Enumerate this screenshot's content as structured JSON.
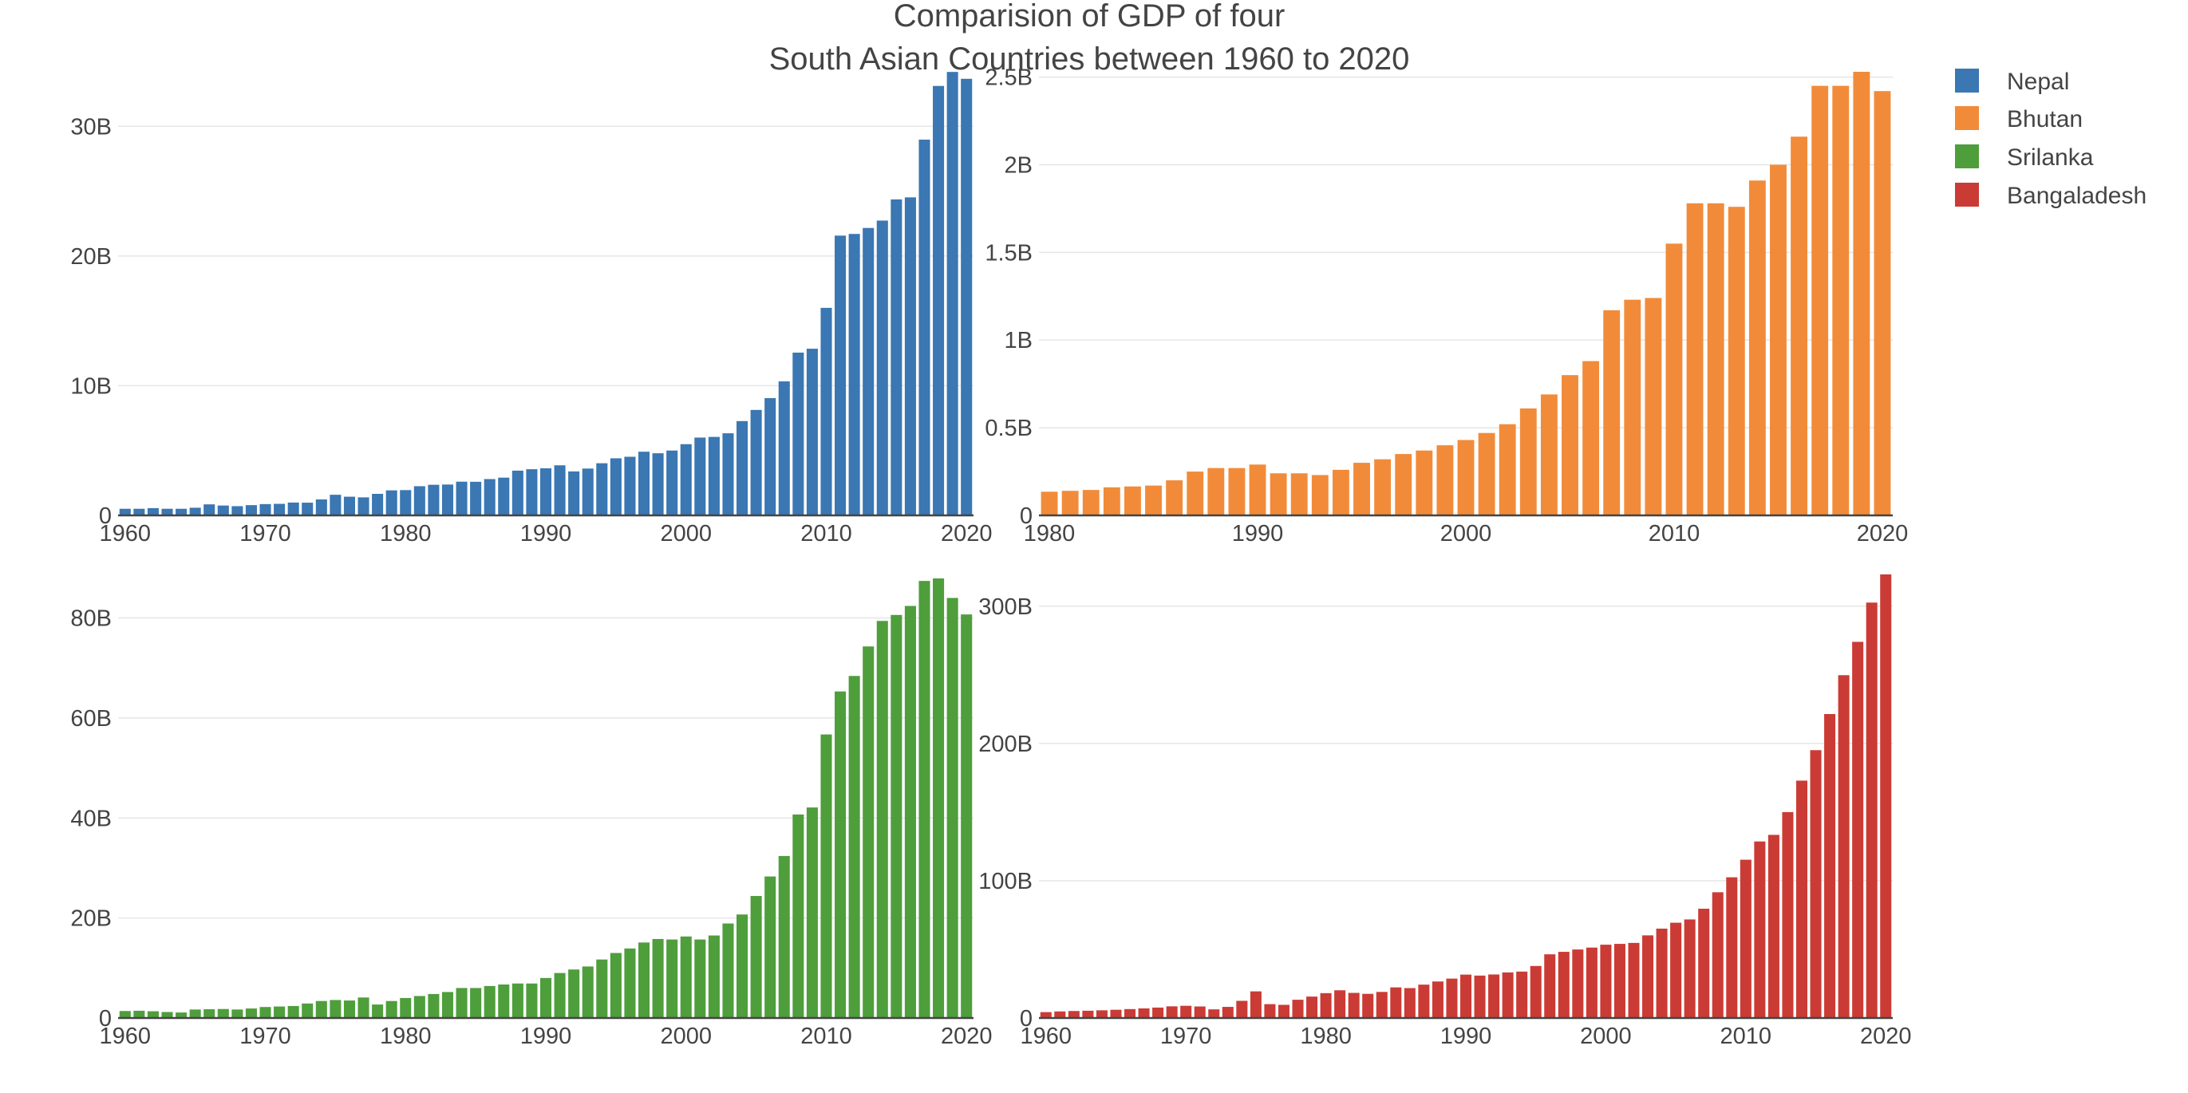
{
  "chart_title": {
    "line1": "Comparision of GDP of four",
    "line2": "South Asian Countries between 1960 to 2020"
  },
  "legend": [
    {
      "name": "Nepal",
      "color": "#3a77b3"
    },
    {
      "name": "Bhutan",
      "color": "#f28b39"
    },
    {
      "name": "Srilanka",
      "color": "#4f9e3c"
    },
    {
      "name": "Bangaladesh",
      "color": "#cb3b35"
    }
  ],
  "chart_data": [
    {
      "type": "bar",
      "series_name": "Nepal",
      "color": "#3a77b3",
      "x": [
        1960,
        1961,
        1962,
        1963,
        1964,
        1965,
        1966,
        1967,
        1968,
        1969,
        1970,
        1971,
        1972,
        1973,
        1974,
        1975,
        1976,
        1977,
        1978,
        1979,
        1980,
        1981,
        1982,
        1983,
        1984,
        1985,
        1986,
        1987,
        1988,
        1989,
        1990,
        1991,
        1992,
        1993,
        1994,
        1995,
        1996,
        1997,
        1998,
        1999,
        2000,
        2001,
        2002,
        2003,
        2004,
        2005,
        2006,
        2007,
        2008,
        2009,
        2010,
        2011,
        2012,
        2013,
        2014,
        2015,
        2016,
        2017,
        2018,
        2019,
        2020
      ],
      "values": [
        0.51,
        0.51,
        0.56,
        0.51,
        0.51,
        0.59,
        0.85,
        0.76,
        0.71,
        0.79,
        0.87,
        0.89,
        0.99,
        0.98,
        1.23,
        1.59,
        1.44,
        1.39,
        1.66,
        1.93,
        1.95,
        2.25,
        2.36,
        2.38,
        2.6,
        2.59,
        2.8,
        2.91,
        3.45,
        3.56,
        3.63,
        3.86,
        3.39,
        3.61,
        4.02,
        4.4,
        4.52,
        4.91,
        4.79,
        5.0,
        5.49,
        6.0,
        6.05,
        6.33,
        7.27,
        8.13,
        9.04,
        10.33,
        12.55,
        12.85,
        16.0,
        21.57,
        21.7,
        22.16,
        22.73,
        24.36,
        24.52,
        28.97,
        33.11,
        34.19,
        33.66
      ],
      "x_ticks": [
        "1960",
        "1970",
        "1980",
        "1990",
        "2000",
        "2010",
        "2020"
      ],
      "y_ticks": [
        {
          "label": "0",
          "value": 0
        },
        {
          "label": "10B",
          "value": 10
        },
        {
          "label": "20B",
          "value": 20
        },
        {
          "label": "30B",
          "value": 30
        }
      ],
      "ylim": [
        0,
        34.2
      ],
      "unit": "billions USD"
    },
    {
      "type": "bar",
      "series_name": "Bhutan",
      "color": "#f28b39",
      "x": [
        1980,
        1981,
        1982,
        1983,
        1984,
        1985,
        1986,
        1987,
        1988,
        1989,
        1990,
        1991,
        1992,
        1993,
        1994,
        1995,
        1996,
        1997,
        1998,
        1999,
        2000,
        2001,
        2002,
        2003,
        2004,
        2005,
        2006,
        2007,
        2008,
        2009,
        2010,
        2011,
        2012,
        2013,
        2014,
        2015,
        2016,
        2017,
        2018,
        2019,
        2020
      ],
      "values": [
        0.135,
        0.14,
        0.145,
        0.16,
        0.165,
        0.17,
        0.2,
        0.25,
        0.27,
        0.27,
        0.29,
        0.24,
        0.24,
        0.23,
        0.26,
        0.3,
        0.32,
        0.35,
        0.37,
        0.4,
        0.43,
        0.47,
        0.52,
        0.61,
        0.69,
        0.8,
        0.88,
        1.17,
        1.23,
        1.24,
        1.55,
        1.78,
        1.78,
        1.76,
        1.91,
        2.0,
        2.16,
        2.45,
        2.45,
        2.53,
        2.42
      ],
      "x_ticks": [
        "1980",
        "1990",
        "2000",
        "2010",
        "2020"
      ],
      "y_ticks": [
        {
          "label": "0",
          "value": 0
        },
        {
          "label": "0.5B",
          "value": 0.5
        },
        {
          "label": "1B",
          "value": 1
        },
        {
          "label": "1.5B",
          "value": 1.5
        },
        {
          "label": "2B",
          "value": 2
        },
        {
          "label": "2.5B",
          "value": 2.5
        }
      ],
      "ylim": [
        0,
        2.53
      ],
      "unit": "billions USD"
    },
    {
      "type": "bar",
      "series_name": "Srilanka",
      "color": "#4f9e3c",
      "x": [
        1960,
        1961,
        1962,
        1963,
        1964,
        1965,
        1966,
        1967,
        1968,
        1969,
        1970,
        1971,
        1972,
        1973,
        1974,
        1975,
        1976,
        1977,
        1978,
        1979,
        1980,
        1981,
        1982,
        1983,
        1984,
        1985,
        1986,
        1987,
        1988,
        1989,
        1990,
        1991,
        1992,
        1993,
        1994,
        1995,
        1996,
        1997,
        1998,
        1999,
        2000,
        2001,
        2002,
        2003,
        2004,
        2005,
        2006,
        2007,
        2008,
        2009,
        2010,
        2011,
        2012,
        2013,
        2014,
        2015,
        2016,
        2017,
        2018,
        2019,
        2020
      ],
      "values": [
        1.4,
        1.45,
        1.35,
        1.2,
        1.1,
        1.7,
        1.75,
        1.8,
        1.7,
        1.9,
        2.2,
        2.3,
        2.4,
        2.9,
        3.4,
        3.6,
        3.5,
        4.1,
        2.7,
        3.4,
        4.0,
        4.4,
        4.8,
        5.2,
        6.0,
        6.0,
        6.4,
        6.7,
        6.9,
        6.9,
        8.0,
        9.0,
        9.7,
        10.3,
        11.7,
        13.0,
        13.9,
        15.1,
        15.8,
        15.7,
        16.3,
        15.7,
        16.5,
        18.9,
        20.7,
        24.4,
        28.3,
        32.4,
        40.7,
        42.1,
        56.7,
        65.3,
        68.4,
        74.3,
        79.4,
        80.6,
        82.4,
        87.4,
        87.9,
        84.0,
        80.7
      ],
      "x_ticks": [
        "1960",
        "1970",
        "1980",
        "1990",
        "2000",
        "2010",
        "2020"
      ],
      "y_ticks": [
        {
          "label": "0",
          "value": 0
        },
        {
          "label": "20B",
          "value": 20
        },
        {
          "label": "40B",
          "value": 40
        },
        {
          "label": "60B",
          "value": 60
        },
        {
          "label": "80B",
          "value": 80
        }
      ],
      "ylim": [
        0,
        88.7
      ],
      "unit": "billions USD"
    },
    {
      "type": "bar",
      "series_name": "Bangaladesh",
      "color": "#cb3b35",
      "x": [
        1960,
        1961,
        1962,
        1963,
        1964,
        1965,
        1966,
        1967,
        1968,
        1969,
        1970,
        1971,
        1972,
        1973,
        1974,
        1975,
        1976,
        1977,
        1978,
        1979,
        1980,
        1981,
        1982,
        1983,
        1984,
        1985,
        1986,
        1987,
        1988,
        1989,
        1990,
        1991,
        1992,
        1993,
        1994,
        1995,
        1996,
        1997,
        1998,
        1999,
        2000,
        2001,
        2002,
        2003,
        2004,
        2005,
        2006,
        2007,
        2008,
        2009,
        2010,
        2011,
        2012,
        2013,
        2014,
        2015,
        2016,
        2017,
        2018,
        2019,
        2020
      ],
      "values": [
        4.3,
        4.8,
        5.1,
        5.3,
        5.6,
        6.0,
        6.5,
        7.0,
        7.6,
        8.5,
        8.9,
        8.4,
        6.3,
        8.1,
        12.5,
        19.4,
        10.1,
        9.6,
        13.3,
        15.6,
        18.1,
        20.2,
        18.3,
        17.6,
        19.0,
        22.3,
        21.8,
        24.3,
        26.6,
        28.7,
        31.6,
        30.9,
        31.7,
        33.2,
        33.8,
        37.9,
        46.4,
        48.2,
        49.9,
        51.3,
        53.4,
        54.0,
        54.7,
        60.2,
        65.1,
        69.4,
        71.8,
        79.6,
        91.6,
        102.5,
        115.3,
        128.6,
        133.4,
        150.0,
        172.9,
        195.1,
        221.4,
        249.7,
        274.0,
        302.6,
        323.1
      ],
      "x_ticks": [
        "1960",
        "1970",
        "1980",
        "1990",
        "2000",
        "2010",
        "2020"
      ],
      "y_ticks": [
        {
          "label": "0",
          "value": 0
        },
        {
          "label": "100B",
          "value": 100
        },
        {
          "label": "200B",
          "value": 200
        },
        {
          "label": "300B",
          "value": 300
        }
      ],
      "ylim": [
        0,
        323.1
      ],
      "unit": "billions USD"
    }
  ]
}
